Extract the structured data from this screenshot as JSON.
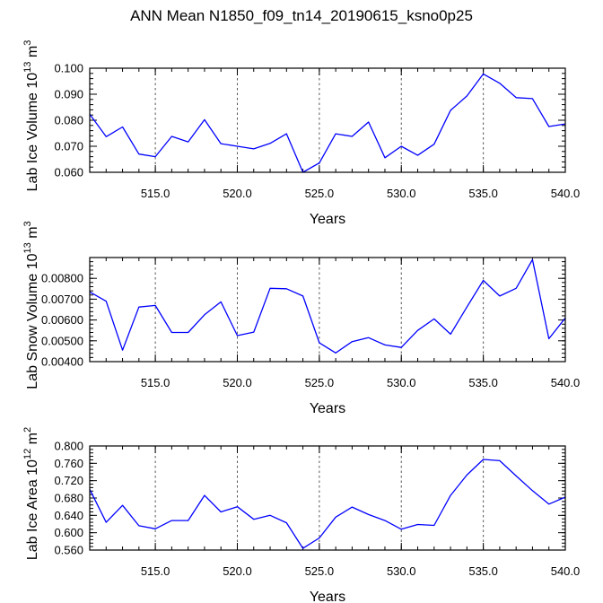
{
  "title": "ANN Mean N1850_f09_tn14_20190615_ksno0p25",
  "chart_data": [
    {
      "type": "line",
      "ylabel": "Lab Ice Volume",
      "yunit_base": "10",
      "yunit_exp": "13",
      "yunit_tail": "m",
      "yunit_tail_exp": "3",
      "xlabel": "Years",
      "xlim": [
        511,
        540
      ],
      "ylim": [
        0.06,
        0.1
      ],
      "xticks": [
        515,
        520,
        525,
        530,
        535,
        540
      ],
      "xtick_labels": [
        "515.0",
        "520.0",
        "525.0",
        "530.0",
        "535.0",
        "540.0"
      ],
      "yticks": [
        0.06,
        0.07,
        0.08,
        0.09,
        0.1
      ],
      "ytick_labels": [
        "0.060",
        "0.070",
        "0.080",
        "0.090",
        "0.100"
      ],
      "grid": "vertical dashed at major x ticks",
      "line_color": "#0000ff",
      "x": [
        511,
        512,
        513,
        514,
        515,
        516,
        517,
        518,
        519,
        520,
        521,
        522,
        523,
        524,
        525,
        526,
        527,
        528,
        529,
        530,
        531,
        532,
        533,
        534,
        535,
        536,
        537,
        538,
        539,
        540
      ],
      "y": [
        0.0823,
        0.0737,
        0.0774,
        0.067,
        0.066,
        0.0738,
        0.0717,
        0.0802,
        0.071,
        0.07,
        0.069,
        0.0711,
        0.0748,
        0.06,
        0.0636,
        0.0748,
        0.0738,
        0.0793,
        0.0656,
        0.07,
        0.0665,
        0.0708,
        0.0838,
        0.0893,
        0.0978,
        0.0942,
        0.0887,
        0.0883,
        0.0776,
        0.0786
      ]
    },
    {
      "type": "line",
      "ylabel": "Lab Snow Volume",
      "yunit_base": "10",
      "yunit_exp": "13",
      "yunit_tail": "m",
      "yunit_tail_exp": "3",
      "xlabel": "Years",
      "xlim": [
        511,
        540
      ],
      "ylim": [
        0.004,
        0.009
      ],
      "xticks": [
        515,
        520,
        525,
        530,
        535,
        540
      ],
      "xtick_labels": [
        "515.0",
        "520.0",
        "525.0",
        "530.0",
        "535.0",
        "540.0"
      ],
      "yticks": [
        0.004,
        0.005,
        0.006,
        0.007,
        0.008
      ],
      "ytick_labels": [
        "0.00400",
        "0.00500",
        "0.00600",
        "0.00700",
        "0.00800"
      ],
      "grid": "vertical dashed at major x ticks",
      "line_color": "#0000ff",
      "x": [
        511,
        512,
        513,
        514,
        515,
        516,
        517,
        518,
        519,
        520,
        521,
        522,
        523,
        524,
        525,
        526,
        527,
        528,
        529,
        530,
        531,
        532,
        533,
        534,
        535,
        536,
        537,
        538,
        539,
        540
      ],
      "y": [
        0.00735,
        0.0069,
        0.00455,
        0.00662,
        0.0067,
        0.0054,
        0.0054,
        0.00625,
        0.00687,
        0.00525,
        0.00542,
        0.00752,
        0.0075,
        0.00715,
        0.0049,
        0.00442,
        0.00496,
        0.00515,
        0.0048,
        0.00468,
        0.0055,
        0.00605,
        0.00532,
        0.00662,
        0.0079,
        0.00715,
        0.00752,
        0.0089,
        0.0051,
        0.0061
      ]
    },
    {
      "type": "line",
      "ylabel": "Lab Ice Area",
      "yunit_base": "10",
      "yunit_exp": "12",
      "yunit_tail": "m",
      "yunit_tail_exp": "2",
      "xlabel": "Years",
      "xlim": [
        511,
        540
      ],
      "ylim": [
        0.56,
        0.8
      ],
      "xticks": [
        515,
        520,
        525,
        530,
        535,
        540
      ],
      "xtick_labels": [
        "515.0",
        "520.0",
        "525.0",
        "530.0",
        "535.0",
        "540.0"
      ],
      "yticks": [
        0.56,
        0.6,
        0.64,
        0.68,
        0.72,
        0.76,
        0.8
      ],
      "ytick_labels": [
        "0.560",
        "0.600",
        "0.640",
        "0.680",
        "0.720",
        "0.760",
        "0.800"
      ],
      "grid": "vertical dashed at major x ticks",
      "line_color": "#0000ff",
      "x": [
        511,
        512,
        513,
        514,
        515,
        516,
        517,
        518,
        519,
        520,
        521,
        522,
        523,
        524,
        525,
        526,
        527,
        528,
        529,
        530,
        531,
        532,
        533,
        534,
        535,
        536,
        537,
        538,
        539,
        540
      ],
      "y": [
        0.7,
        0.624,
        0.663,
        0.616,
        0.609,
        0.628,
        0.628,
        0.686,
        0.648,
        0.66,
        0.631,
        0.64,
        0.623,
        0.564,
        0.588,
        0.636,
        0.659,
        0.642,
        0.628,
        0.608,
        0.619,
        0.617,
        0.686,
        0.733,
        0.769,
        0.766,
        0.731,
        0.697,
        0.666,
        0.682
      ]
    }
  ]
}
